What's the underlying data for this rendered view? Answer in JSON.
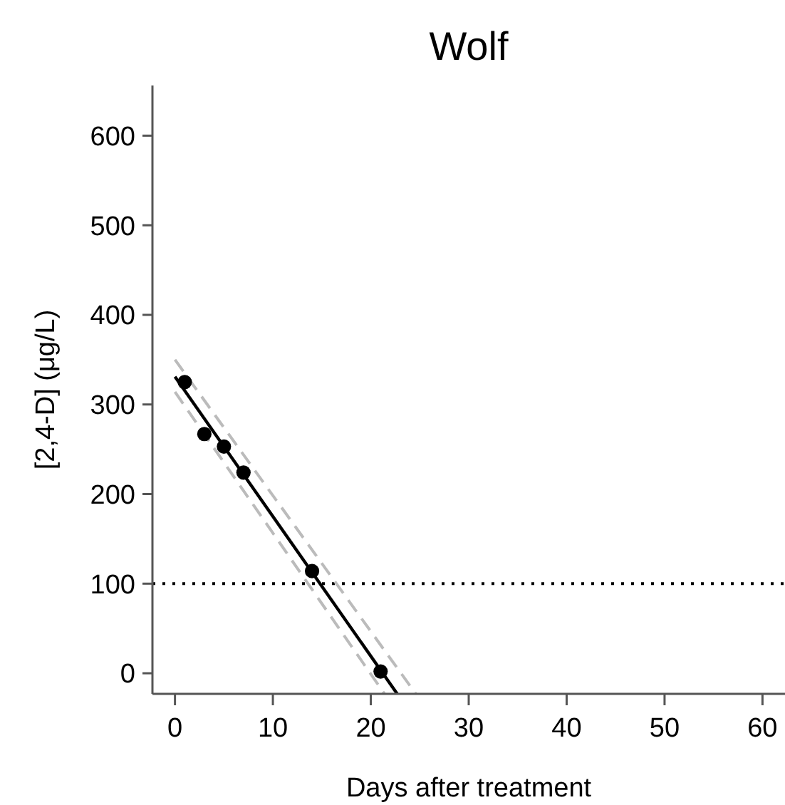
{
  "chart_data": {
    "type": "scatter",
    "title": "Wolf",
    "xlabel": "Days after treatment",
    "ylabel": "[2,4-D] (μg/L)",
    "xlim": [
      -2.3,
      62.3
    ],
    "ylim": [
      -23,
      656
    ],
    "xticks": [
      0,
      10,
      20,
      30,
      40,
      50,
      60
    ],
    "yticks": [
      0,
      100,
      200,
      300,
      400,
      500,
      600
    ],
    "grid": false,
    "ref_lines": [
      {
        "axis": "y",
        "value": 100,
        "line_style": "dotted",
        "color": "#000000"
      }
    ],
    "series": [
      {
        "type": "line",
        "color": "#bbbbbb",
        "line_style": "dashed",
        "marker": "none",
        "x": [
          0,
          24.6
        ],
        "values": [
          350,
          -23
        ]
      },
      {
        "type": "line",
        "color": "#bbbbbb",
        "line_style": "dashed",
        "marker": "none",
        "x": [
          0,
          21.4
        ],
        "values": [
          314,
          -23
        ]
      },
      {
        "type": "line",
        "color": "#000000",
        "line_style": "solid",
        "marker": "none",
        "x": [
          0,
          22.7
        ],
        "values": [
          331,
          -23
        ]
      },
      {
        "color": "#000000",
        "marker": "circle",
        "x": [
          1,
          3,
          5,
          7,
          14,
          21
        ],
        "values": [
          325,
          267,
          253,
          224,
          114,
          2
        ]
      }
    ]
  }
}
